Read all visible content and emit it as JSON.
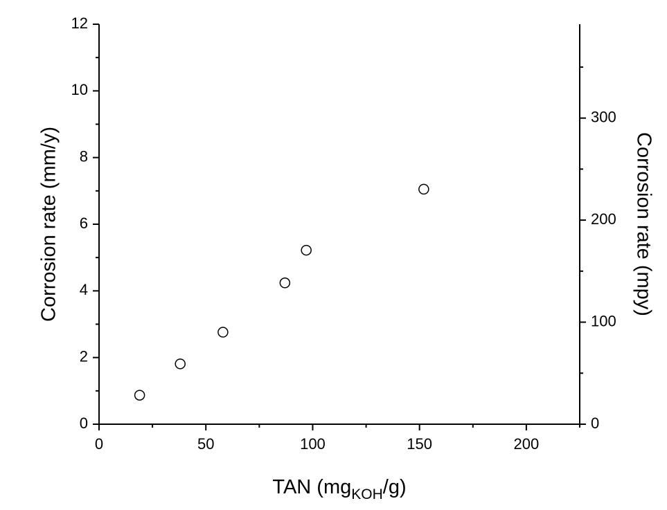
{
  "chart_data": {
    "type": "scatter",
    "xlabel_parts": [
      "TAN (mg",
      "KOH",
      "/g)"
    ],
    "ylabel": "Corrosion rate (mm/y)",
    "y2label": "Corrosion rate (mpy)",
    "x": [
      19,
      38,
      58,
      87,
      97,
      152
    ],
    "series": [
      {
        "values": [
          0.87,
          1.81,
          2.76,
          4.24,
          5.22,
          7.05
        ],
        "color": "#000000"
      }
    ],
    "xlim": [
      0,
      225
    ],
    "xticks": [
      0,
      50,
      100,
      150,
      200
    ],
    "ylim": [
      0,
      12
    ],
    "yticks": [
      0,
      2,
      4,
      6,
      8,
      10,
      12
    ],
    "y2lim": [
      0,
      392
    ],
    "y2ticks": [
      0,
      100,
      200,
      300
    ],
    "marker": "open-circle",
    "grid": false
  }
}
